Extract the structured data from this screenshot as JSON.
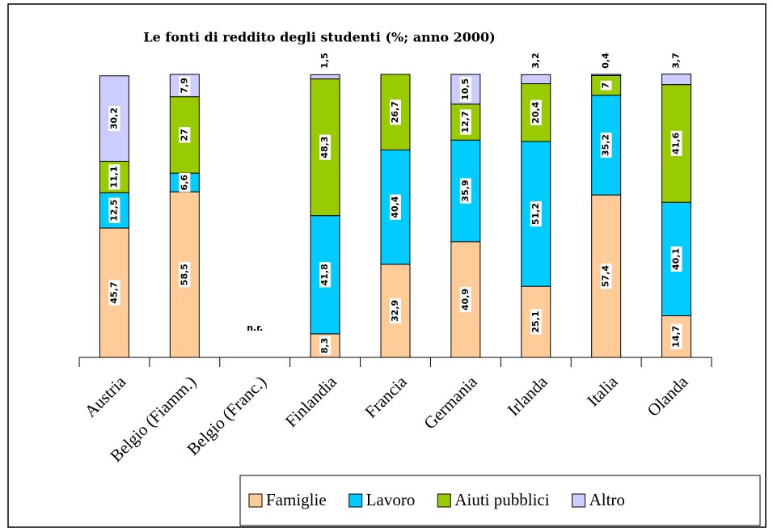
{
  "chart_data": {
    "type": "stacked_bar",
    "title": "Le fonti di reddito degli studenti (%; anno 2000)",
    "categories": [
      "Austria",
      "Belgio (Fiamm.)",
      "Belgio (Franc.)",
      "Finlandia",
      "Francia",
      "Germania",
      "Irlanda",
      "Italia",
      "Olanda"
    ],
    "annotation": "n.r.",
    "ylim": [
      0,
      100
    ],
    "series": [
      {
        "name": "Famiglie",
        "color": "#ffcc99",
        "values": [
          45.7,
          58.5,
          null,
          8.3,
          32.9,
          40.9,
          25.1,
          57.4,
          14.7
        ],
        "value_labels": [
          "45,7",
          "58,5",
          null,
          "8,3",
          "32,9",
          "40,9",
          "25,1",
          "57,4",
          "14,7"
        ]
      },
      {
        "name": "Lavoro",
        "color": "#00ccff",
        "values": [
          12.5,
          6.6,
          null,
          41.8,
          40.4,
          35.9,
          51.2,
          35.2,
          40.1
        ],
        "value_labels": [
          "12,5",
          "6,6",
          null,
          "41,8",
          "40,4",
          "35,9",
          "51,2",
          "35,2",
          "40,1"
        ]
      },
      {
        "name": "Aiuti pubblici",
        "color": "#99cc00",
        "values": [
          11.1,
          27,
          null,
          48.3,
          26.7,
          12.7,
          20.4,
          7,
          41.6
        ],
        "value_labels": [
          "11,1",
          "27",
          null,
          "48,3",
          "26,7",
          "12,7",
          "20,4",
          "7",
          "41,6"
        ]
      },
      {
        "name": "Altro",
        "color": "#ccccff",
        "values": [
          30.2,
          7.9,
          null,
          1.5,
          null,
          10.5,
          3.2,
          0.4,
          3.7
        ],
        "value_labels": [
          "30,2",
          "7,9",
          null,
          "1,5",
          null,
          "10,5",
          "3,2",
          "0,4",
          "3,7"
        ]
      }
    ]
  }
}
